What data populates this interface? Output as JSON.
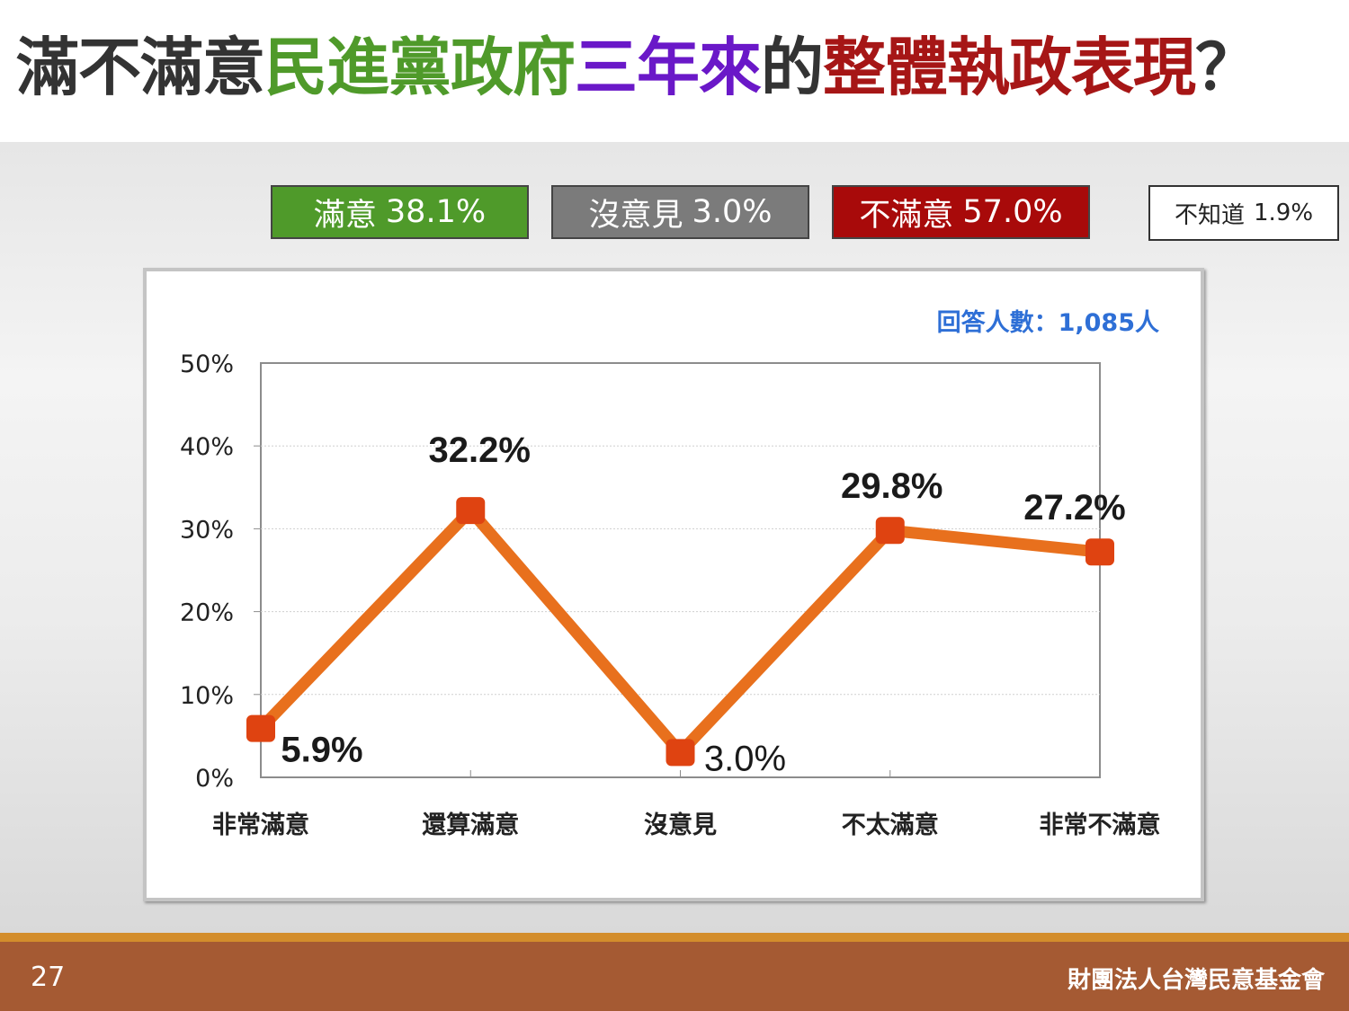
{
  "title": {
    "parts": [
      {
        "text": "滿不滿意",
        "color": "#333333"
      },
      {
        "text": "民進黨政府",
        "color": "#4f9a2a"
      },
      {
        "text": "三年來",
        "color": "#6a18c8"
      },
      {
        "text": "的",
        "color": "#333333"
      },
      {
        "text": "整體執政表現",
        "color": "#a61616"
      },
      {
        "text": "？",
        "color": "#333333"
      }
    ]
  },
  "summary": {
    "satisfied": {
      "label": "滿意",
      "value": "38.1%",
      "color": "#4f9a2a"
    },
    "no_opinion": {
      "label": "沒意見",
      "value": "3.0%",
      "color": "#7b7b7b"
    },
    "unsatisfied": {
      "label": "不滿意",
      "value": "57.0%",
      "color": "#a80a0a"
    },
    "dont_know": {
      "label": "不知道",
      "value": "1.9%"
    }
  },
  "chart_data": {
    "type": "line",
    "categories": [
      "非常滿意",
      "還算滿意",
      "沒意見",
      "不太滿意",
      "非常不滿意"
    ],
    "values": [
      5.9,
      32.2,
      3.0,
      29.8,
      27.2
    ],
    "data_labels": [
      "5.9%",
      "32.2%",
      "3.0%",
      "29.8%",
      "27.2%"
    ],
    "y_ticks": [
      "0%",
      "10%",
      "20%",
      "30%",
      "40%",
      "50%"
    ],
    "ylim": [
      0,
      50
    ],
    "grid": true,
    "annotation": "回答人數：1,085人",
    "line_color": "#e8701d",
    "marker_color": "#df4311",
    "annotation_color": "#2e6fd6"
  },
  "footer": {
    "page_number": "27",
    "organization": "財團法人台灣民意基金會"
  }
}
